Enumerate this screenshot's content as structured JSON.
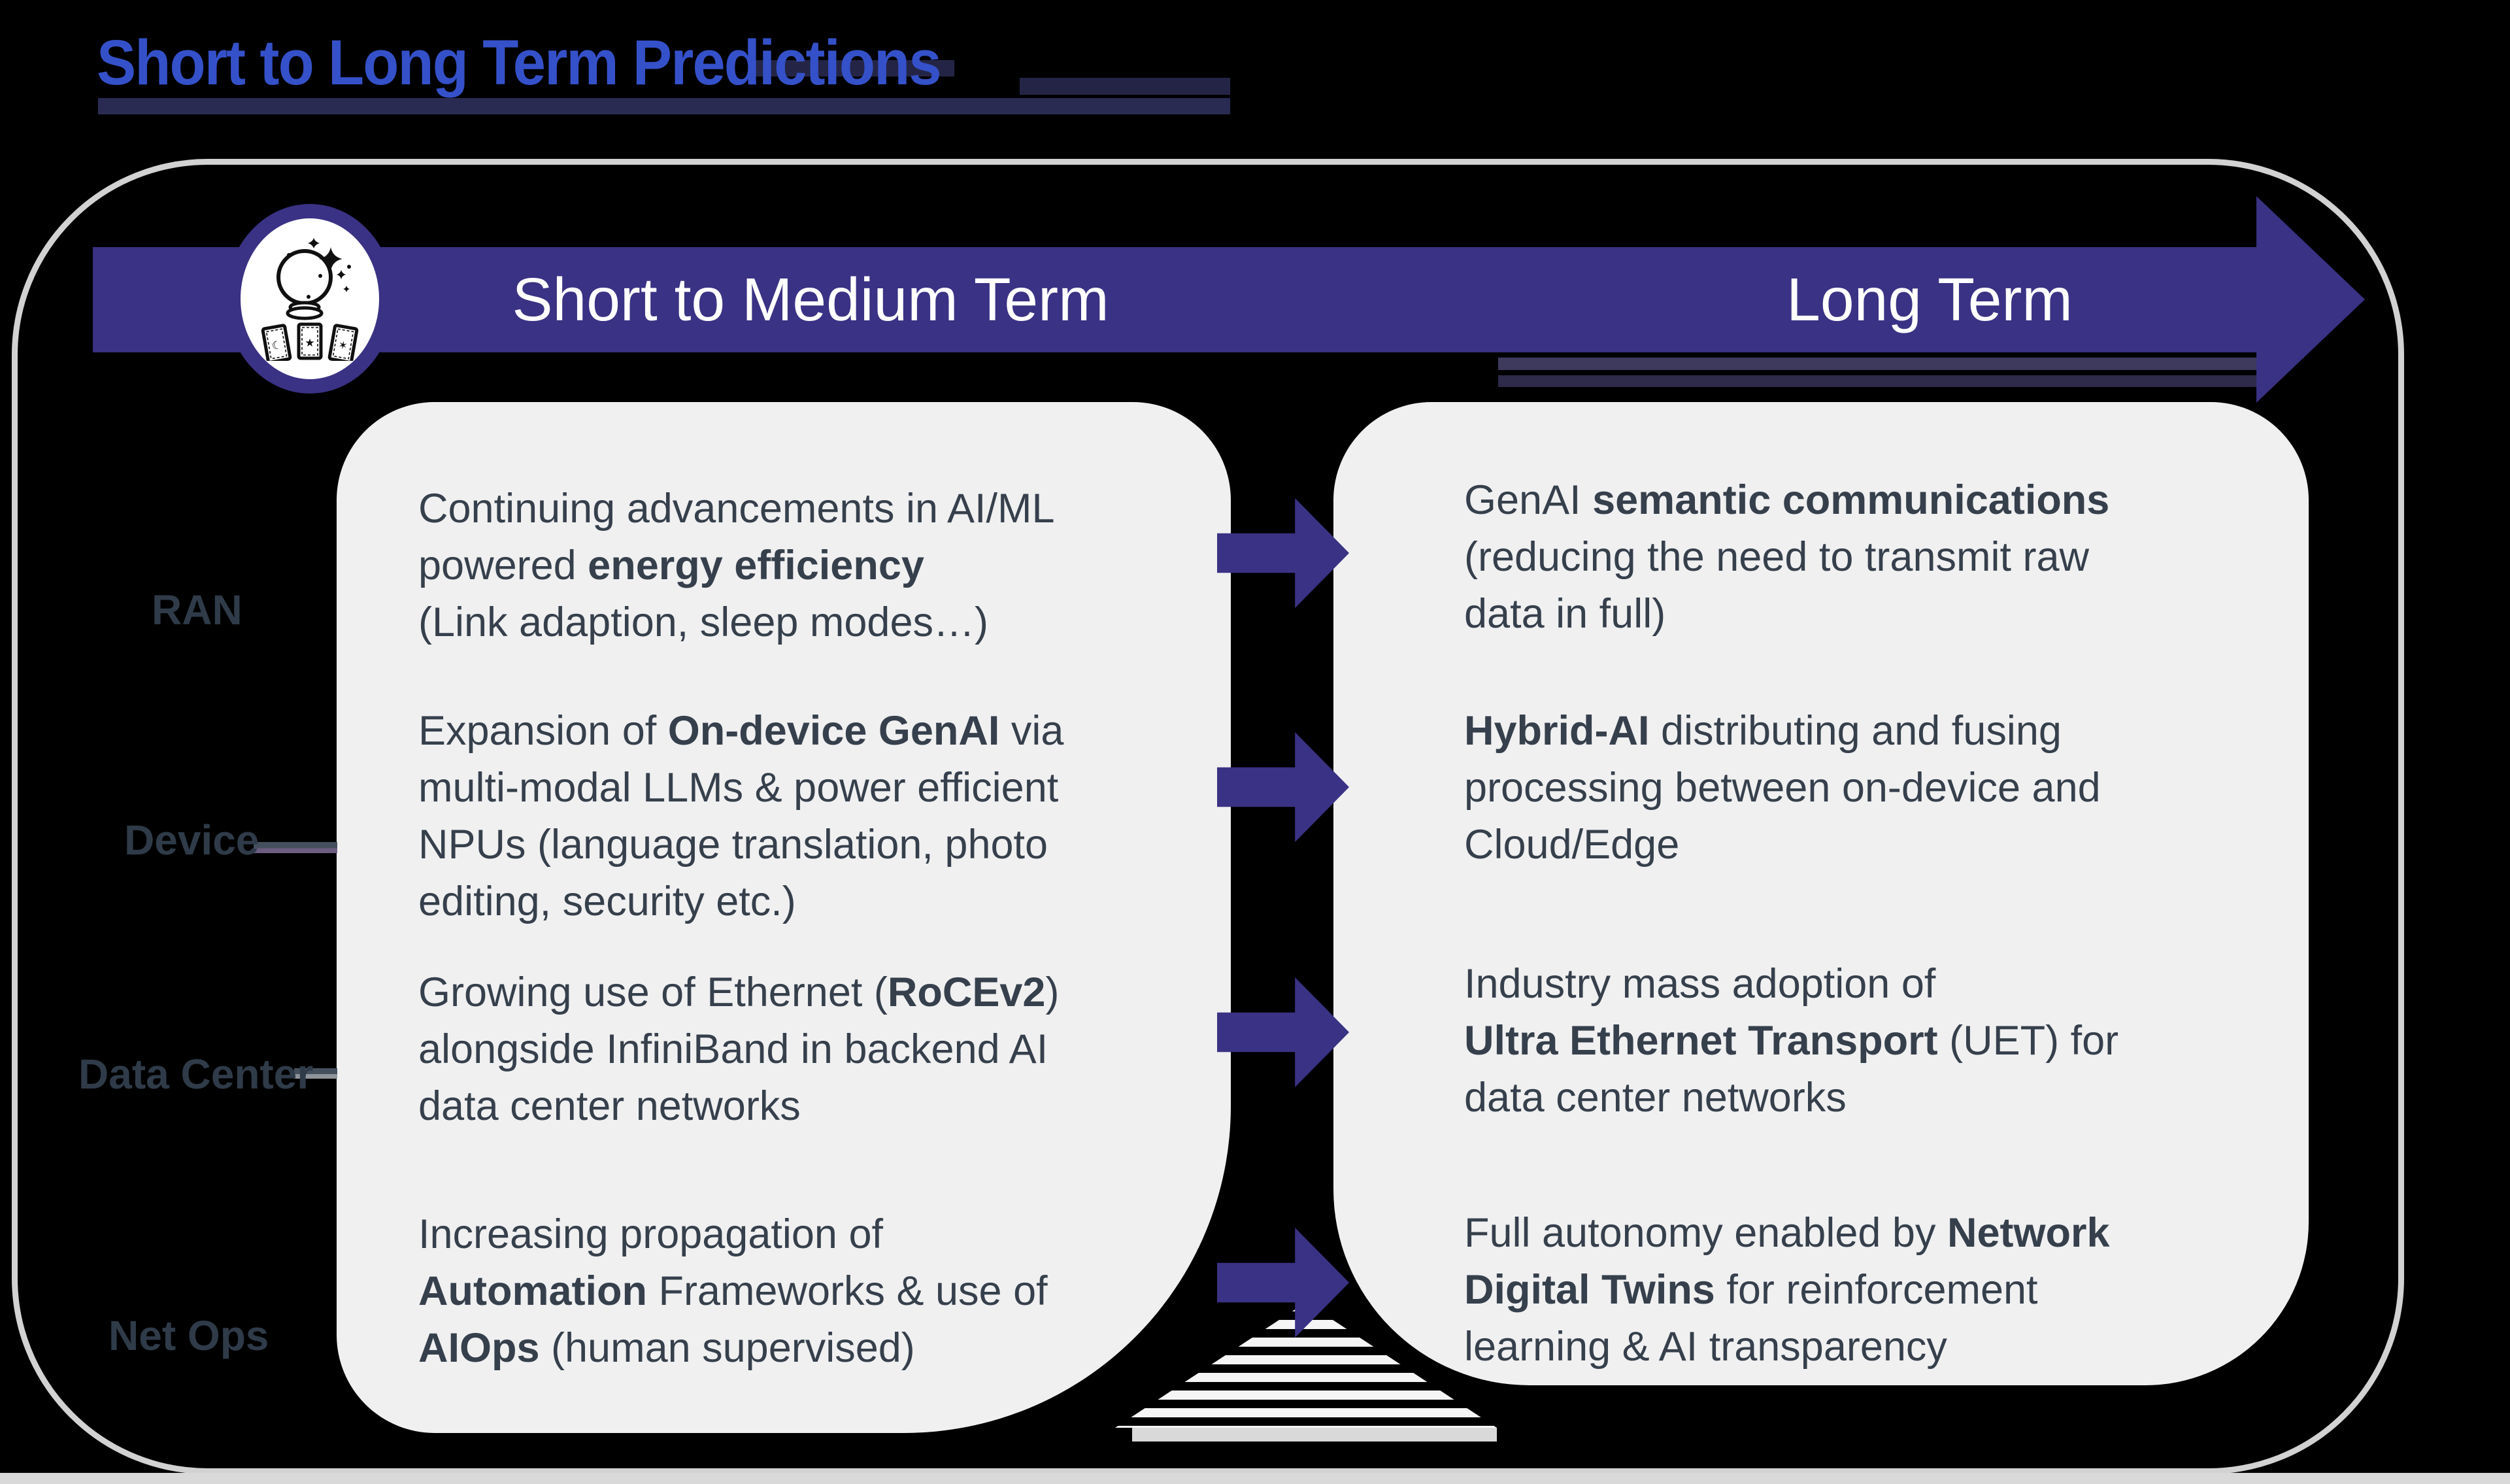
{
  "title": {
    "text": "Short to Long Term Predictions"
  },
  "banner": {
    "left_label": "Short to Medium Term",
    "right_label": "Long Term",
    "icon": "crystal-ball-with-tarot-cards"
  },
  "colors": {
    "accent_purple": "#3A3284",
    "title_blue": "#3551C9",
    "card_gray": "#F0F0F1",
    "text_slate": "#36404C",
    "frame_gray": "#D2D2D2"
  },
  "categories": [
    {
      "label": "RAN",
      "short_term_lines": [
        [
          {
            "t": "Continuing advancements in AI/ML"
          }
        ],
        [
          {
            "t": "powered "
          },
          {
            "t": "energy efficiency",
            "b": true
          }
        ],
        [
          {
            "t": "(Link adaption, sleep modes…)"
          }
        ]
      ],
      "long_term_lines": [
        [
          {
            "t": "GenAI "
          },
          {
            "t": "semantic communications",
            "b": true
          }
        ],
        [
          {
            "t": "(reducing the need to transmit raw"
          }
        ],
        [
          {
            "t": "data in full)"
          }
        ]
      ]
    },
    {
      "label": "Device",
      "short_term_lines": [
        [
          {
            "t": "Expansion of "
          },
          {
            "t": "On-device GenAI",
            "b": true
          },
          {
            "t": " via"
          }
        ],
        [
          {
            "t": "multi-modal LLMs & power efficient"
          }
        ],
        [
          {
            "t": "NPUs (language translation, photo"
          }
        ],
        [
          {
            "t": "editing, security etc.)"
          }
        ]
      ],
      "long_term_lines": [
        [
          {
            "t": "Hybrid-AI",
            "b": true
          },
          {
            "t": " distributing and fusing"
          }
        ],
        [
          {
            "t": "processing between on-device and"
          }
        ],
        [
          {
            "t": "Cloud/Edge"
          }
        ]
      ]
    },
    {
      "label": "Data Center",
      "short_term_lines": [
        [
          {
            "t": "Growing use of Ethernet ("
          },
          {
            "t": "RoCEv2",
            "b": true
          },
          {
            "t": ")"
          }
        ],
        [
          {
            "t": "alongside InfiniBand in backend AI"
          }
        ],
        [
          {
            "t": "data center networks"
          }
        ]
      ],
      "long_term_lines": [
        [
          {
            "t": "Industry mass adoption of"
          }
        ],
        [
          {
            "t": "Ultra Ethernet Transport",
            "b": true
          },
          {
            "t": " (UET) for"
          }
        ],
        [
          {
            "t": "data center networks"
          }
        ]
      ]
    },
    {
      "label": "Net Ops",
      "short_term_lines": [
        [
          {
            "t": "Increasing propagation of"
          }
        ],
        [
          {
            "t": "Automation",
            "b": true
          },
          {
            "t": " Frameworks & use of"
          }
        ],
        [
          {
            "t": "AIOps",
            "b": true
          },
          {
            "t": " (human supervised)"
          }
        ]
      ],
      "long_term_lines": [
        [
          {
            "t": "Full autonomy enabled by "
          },
          {
            "t": "Network",
            "b": true
          }
        ],
        [
          {
            "t": "Digital Twins",
            "b": true
          },
          {
            "t": " for reinforcement"
          }
        ],
        [
          {
            "t": "learning & AI transparency"
          }
        ]
      ]
    }
  ]
}
